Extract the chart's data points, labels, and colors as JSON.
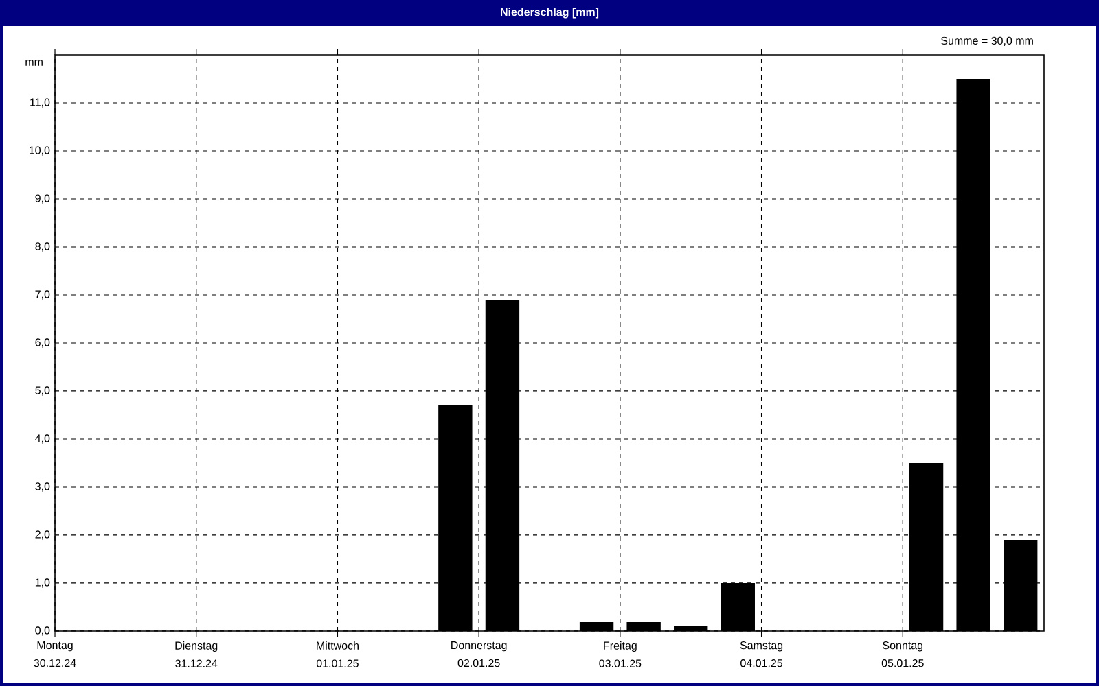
{
  "chart_data": {
    "type": "bar",
    "title": "Niederschlag [mm]",
    "ylabel": "mm",
    "annotations": [
      "Summe = 30,0 mm"
    ],
    "categories": [
      "Montag 30.12.24",
      null,
      null,
      "Dienstag 31.12.24",
      null,
      null,
      "Mittwoch 01.01.25",
      null,
      null,
      "Donnerstag 02.01.25",
      null,
      null,
      "Freitag 03.01.25",
      null,
      null,
      "Samstag 04.01.25",
      null,
      null,
      "Sonntag 05.01.25",
      null,
      null
    ],
    "values": [
      0,
      0,
      0,
      0,
      0,
      0,
      0,
      0,
      4.7,
      6.9,
      0,
      0.2,
      0.2,
      0.1,
      1.0,
      0,
      0,
      0,
      3.5,
      11.5,
      1.9
    ],
    "color": "#000000",
    "ylim": [
      0,
      12
    ],
    "yticks": [
      {
        "value": 0,
        "label": "0,0"
      },
      {
        "value": 1,
        "label": "1,0"
      },
      {
        "value": 2,
        "label": "2,0"
      },
      {
        "value": 3,
        "label": "3,0"
      },
      {
        "value": 4,
        "label": "4,0"
      },
      {
        "value": 5,
        "label": "5,0"
      },
      {
        "value": 6,
        "label": "6,0"
      },
      {
        "value": 7,
        "label": "7,0"
      },
      {
        "value": 8,
        "label": "8,0"
      },
      {
        "value": 9,
        "label": "9,0"
      },
      {
        "value": 10,
        "label": "10,0"
      },
      {
        "value": 11,
        "label": "11,0"
      }
    ],
    "grid": true
  }
}
